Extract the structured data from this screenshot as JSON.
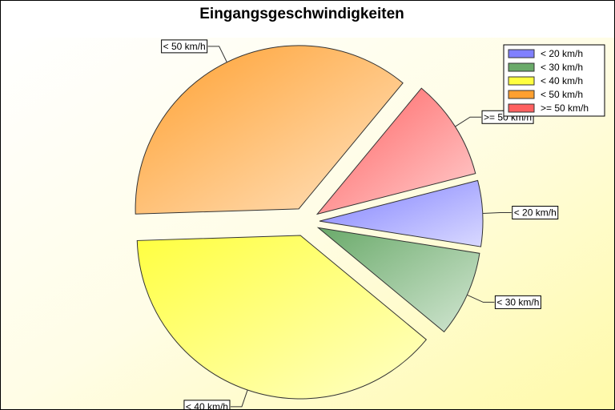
{
  "chart_data": {
    "type": "pie",
    "title": "Eingangsgeschwindigkeiten",
    "exploded": true,
    "legend_position": "top-right",
    "slices": [
      {
        "name": "< 20 km/h",
        "percent": 6.5,
        "color": "#8080ff"
      },
      {
        "name": "< 30 km/h",
        "percent": 8.5,
        "color": "#6aaa6a"
      },
      {
        "name": "< 40 km/h",
        "percent": 38.5,
        "color": "#ffff40"
      },
      {
        "name": "< 50 km/h",
        "percent": 36.5,
        "color": "#ffa030"
      },
      {
        "name": ">= 50 km/h",
        "percent": 10.0,
        "color": "#ff6060"
      }
    ]
  }
}
